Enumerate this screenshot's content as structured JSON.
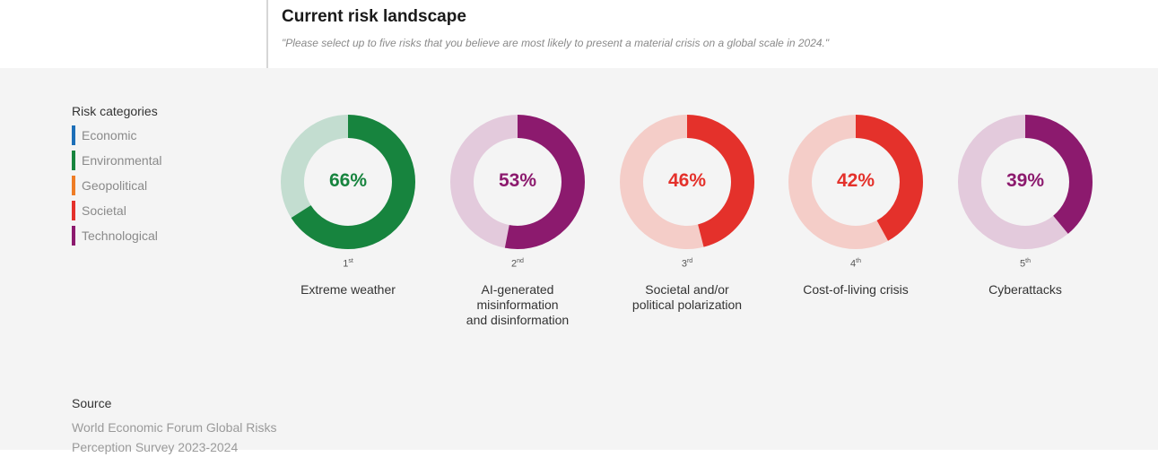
{
  "header": {
    "title": "Current risk landscape",
    "subtitle": "\"Please select up to five risks that you believe are most likely to present a material crisis on a global scale in 2024.\""
  },
  "legend": {
    "title": "Risk categories",
    "items": [
      {
        "label": "Economic",
        "color": "#1d6fb8"
      },
      {
        "label": "Environmental",
        "color": "#17843e"
      },
      {
        "label": "Geopolitical",
        "color": "#ee7d26"
      },
      {
        "label": "Societal",
        "color": "#e4312b"
      },
      {
        "label": "Technological",
        "color": "#8c1a6e"
      }
    ]
  },
  "source": {
    "title": "Source",
    "lines": [
      "World Economic Forum Global Risks",
      "Perception Survey 2023-2024"
    ]
  },
  "chart_data": {
    "type": "pie",
    "variant": "donut",
    "unit": "%",
    "items": [
      {
        "rank": "1",
        "suffix": "st",
        "label": "Extreme weather",
        "value": 66,
        "value_label": "66%",
        "category": "Environmental",
        "color": "#17843e",
        "track_color": "#c3ddd0",
        "text_color": "#17843e"
      },
      {
        "rank": "2",
        "suffix": "nd",
        "label": "AI-generated\nmisinformation\nand disinformation",
        "value": 53,
        "value_label": "53%",
        "category": "Technological",
        "color": "#8c1a6e",
        "track_color": "#e3cadc",
        "text_color": "#8c1a6e"
      },
      {
        "rank": "3",
        "suffix": "rd",
        "label": "Societal and/or\npolitical polarization",
        "value": 46,
        "value_label": "46%",
        "category": "Societal",
        "color": "#e4312b",
        "track_color": "#f4cdc8",
        "text_color": "#e4312b"
      },
      {
        "rank": "4",
        "suffix": "th",
        "label": "Cost-of-living crisis",
        "value": 42,
        "value_label": "42%",
        "category": "Societal",
        "color": "#e4312b",
        "track_color": "#f4cdc8",
        "text_color": "#e4312b"
      },
      {
        "rank": "5",
        "suffix": "th",
        "label": "Cyberattacks",
        "value": 39,
        "value_label": "39%",
        "category": "Technological",
        "color": "#8c1a6e",
        "track_color": "#e3cadc",
        "text_color": "#8c1a6e"
      }
    ]
  }
}
